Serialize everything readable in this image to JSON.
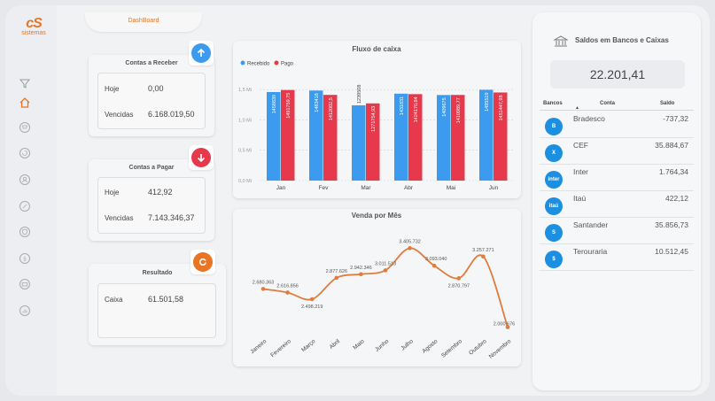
{
  "app": {
    "tab_label": "DashBoard",
    "logo_mark": "cS",
    "logo_text": "sistemas"
  },
  "sidebar": {
    "icons": [
      "filter-icon",
      "home-icon",
      "cart-icon",
      "refresh-icon",
      "user-icon",
      "tag-icon",
      "shield-icon",
      "money-icon",
      "card-icon",
      "report-icon"
    ]
  },
  "contas_receber": {
    "title": "Contas a Receber",
    "hoje_label": "Hoje",
    "hoje_value": "0,00",
    "vencidas_label": "Vencidas",
    "vencidas_value": "6.168.019,50"
  },
  "contas_pagar": {
    "title": "Contas a Pagar",
    "hoje_label": "Hoje",
    "hoje_value": "412,92",
    "vencidas_label": "Vencidas",
    "vencidas_value": "7.143.346,37"
  },
  "resultado": {
    "title": "Resultado",
    "caixa_label": "Caixa",
    "caixa_value": "61.501,58"
  },
  "colors": {
    "recebido": "#3d9bef",
    "pago": "#e6394b",
    "line": "#e07c3c",
    "accent": "#e87424"
  },
  "chart_data": [
    {
      "type": "bar",
      "title": "Fluxo de caixa",
      "categories": [
        "Jan",
        "Fev",
        "Mar",
        "Abr",
        "Mai",
        "Jun"
      ],
      "series": [
        {
          "name": "Recebido",
          "values": [
            1.458839,
            1.483418,
            1.239508,
            1.431831,
            1.409675,
            1.495519
          ],
          "labels": [
            "1458839",
            "1483418",
            "1239508",
            "1431831",
            "1409675",
            "1495519"
          ]
        },
        {
          "name": "Pago",
          "values": [
            1.491759,
            1.412002,
            1.271754,
            1.42417,
            1.410989,
            1.451447
          ],
          "labels": [
            "1491759,75",
            "1412002,5",
            "1271754,93",
            "1424170,84",
            "1410989,77",
            "1451447,98"
          ]
        }
      ],
      "yticks": [
        "0,0 Mi",
        "0,5 Mi",
        "1,0 Mi",
        "1,5 Mi"
      ],
      "ylim": [
        0,
        1.75
      ],
      "legend": "top-left"
    },
    {
      "type": "line",
      "title": "Venda por Mês",
      "categories": [
        "Janeiro",
        "Fevereiro",
        "Março",
        "Abril",
        "Maio",
        "Junho",
        "Julho",
        "Agosto",
        "Setembro",
        "Outubro",
        "Novembro"
      ],
      "values": [
        2680363,
        2616856,
        2498219,
        2877626,
        2942346,
        3011513,
        3405732,
        3093040,
        2870797,
        3257271,
        2000676
      ],
      "labels": [
        "2.680.363",
        "2.616.856",
        "2.498.219",
        "2.877.626",
        "2.942.346",
        "3.011.513",
        "3.405.732",
        "3.093.040",
        "2.870.797",
        "3.257.271",
        "2.000.676"
      ],
      "ylim": [
        1900000,
        3600000
      ]
    }
  ],
  "saldos": {
    "title": "Saldos em Bancos e Caixas",
    "total": "22.201,41",
    "headers": {
      "bancos": "Bancos",
      "conta": "Conta",
      "saldo": "Saldo"
    },
    "rows": [
      {
        "name": "Bradesco",
        "value": "-737,32",
        "icon": "bradesco-logo",
        "short": "B"
      },
      {
        "name": "CEF",
        "value": "35.884,67",
        "icon": "caixa-logo",
        "short": "X"
      },
      {
        "name": "Inter",
        "value": "1.764,34",
        "icon": "inter-logo",
        "short": "inter"
      },
      {
        "name": "Itaú",
        "value": "422,12",
        "icon": "itau-logo",
        "short": "itaú"
      },
      {
        "name": "Santander",
        "value": "35.856,73",
        "icon": "santander-logo",
        "short": "S"
      },
      {
        "name": "Terouraria",
        "value": "10.512,45",
        "icon": "tesouraria-logo",
        "short": "$"
      }
    ]
  }
}
